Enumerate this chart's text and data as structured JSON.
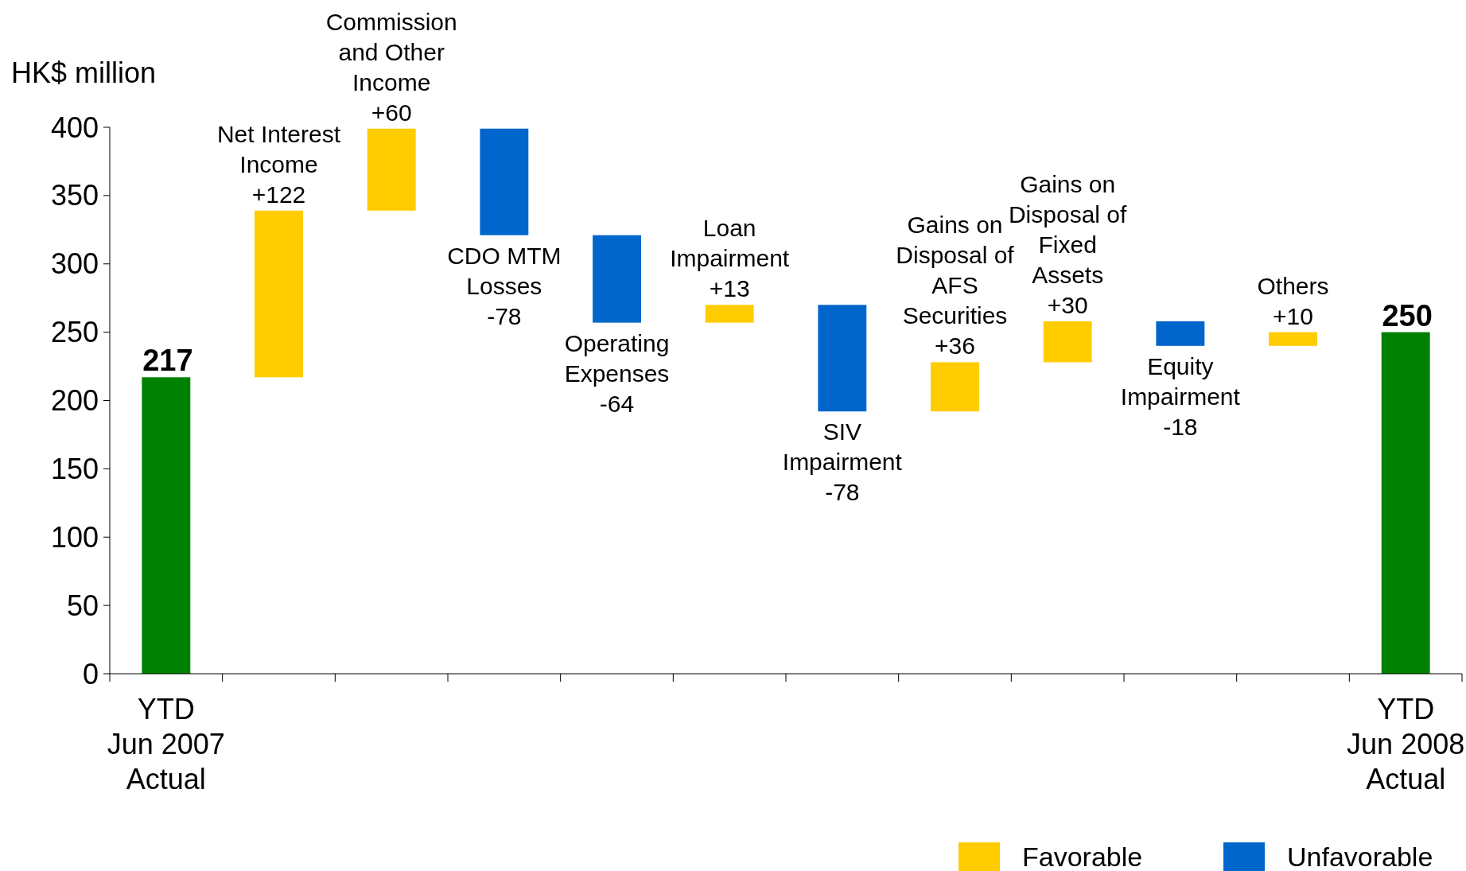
{
  "chart_data": {
    "type": "bar",
    "ylabel": "HK$ million",
    "categories": [
      "YTD\nJun 2007\nActual",
      null,
      null,
      null,
      null,
      null,
      null,
      null,
      null,
      null,
      null,
      "YTD\nJun 2008\nActual"
    ],
    "annotations": [
      "Net Interest\nIncome",
      "Commission\nand Other\nIncome",
      "CDO MTM\nLosses",
      "Operating\nExpenses",
      "Loan\nImpairment",
      "SIV\nImpairment",
      "Gains on\nDisposal of\nAFS\nSecurities",
      "Gains on\nDisposal of\nFixed\nAssets",
      "Equity\nImpairment",
      "Others"
    ],
    "series": [
      {
        "color": "#008000",
        "values": [
          217,
          null,
          null,
          null,
          null,
          null,
          null,
          null,
          null,
          null,
          null,
          250
        ],
        "base": [
          0,
          null,
          null,
          null,
          null,
          null,
          null,
          null,
          null,
          null,
          null,
          0
        ],
        "value_labels": [
          "217",
          null,
          null,
          null,
          null,
          null,
          null,
          null,
          null,
          null,
          null,
          "250"
        ]
      },
      {
        "name": "Favorable",
        "color": "#ffcc00",
        "values": [
          null,
          122,
          60,
          null,
          null,
          13,
          null,
          36,
          30,
          null,
          10,
          null
        ],
        "base": [
          null,
          217,
          339,
          null,
          null,
          257,
          null,
          192,
          228,
          null,
          240,
          null
        ],
        "value_labels": [
          null,
          "+122",
          "+60",
          null,
          null,
          "+13",
          null,
          "+36",
          "+30",
          null,
          "+10",
          null
        ]
      },
      {
        "name": "Unfavorable",
        "color": "#0066cc",
        "values": [
          null,
          null,
          null,
          -78,
          -64,
          null,
          -78,
          null,
          null,
          -18,
          null,
          null
        ],
        "base": [
          null,
          null,
          null,
          399,
          321,
          null,
          270,
          null,
          null,
          258,
          null,
          null
        ],
        "value_labels": [
          null,
          null,
          null,
          "-78",
          "-64",
          null,
          "-78",
          null,
          null,
          "-18",
          null,
          null
        ]
      }
    ],
    "ylim": [
      0,
      400
    ],
    "yticks": [
      0,
      50,
      100,
      150,
      200,
      250,
      300,
      350,
      400
    ],
    "legend": "bottom right"
  }
}
